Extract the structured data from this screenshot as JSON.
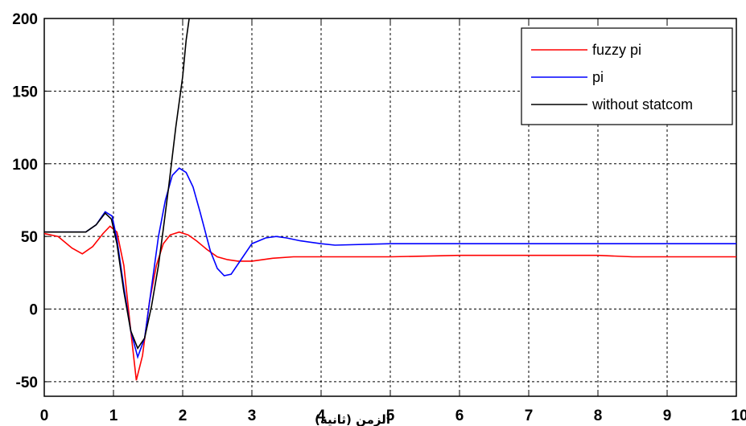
{
  "chart_data": {
    "type": "line",
    "title": "",
    "xlabel": "الزمن (ثانية)",
    "ylabel": "",
    "xlim": [
      0,
      10
    ],
    "ylim": [
      -60,
      200
    ],
    "xticks": [
      0,
      1,
      2,
      3,
      4,
      5,
      6,
      7,
      8,
      9,
      10
    ],
    "yticks": [
      -50,
      0,
      50,
      100,
      150,
      200
    ],
    "grid": true,
    "grid_style": "dotted",
    "legend_position": "top-right",
    "series": [
      {
        "name": "fuzzy pi",
        "color": "#ff0000",
        "x": [
          0,
          0.2,
          0.4,
          0.55,
          0.7,
          0.85,
          0.95,
          1.05,
          1.15,
          1.25,
          1.33,
          1.42,
          1.52,
          1.62,
          1.72,
          1.82,
          1.95,
          2.08,
          2.2,
          2.35,
          2.5,
          2.65,
          2.8,
          3.0,
          3.3,
          3.6,
          4.0,
          5.0,
          6.0,
          7.0,
          8.0,
          8.5,
          9.0,
          10.0
        ],
        "y": [
          52,
          50,
          42,
          38,
          43,
          52,
          57,
          53,
          30,
          -15,
          -49,
          -32,
          5,
          30,
          45,
          51,
          53,
          51,
          47,
          41,
          36,
          34,
          33,
          33,
          35,
          36,
          36,
          36,
          37,
          37,
          37,
          36,
          36,
          36
        ]
      },
      {
        "name": "pi",
        "color": "#0000ff",
        "x": [
          0,
          0.3,
          0.6,
          0.75,
          0.88,
          0.98,
          1.05,
          1.15,
          1.25,
          1.35,
          1.45,
          1.55,
          1.65,
          1.75,
          1.85,
          1.95,
          2.05,
          2.15,
          2.25,
          2.4,
          2.5,
          2.6,
          2.7,
          2.8,
          3.0,
          3.2,
          3.35,
          3.5,
          3.7,
          4.0,
          4.2,
          5.0,
          6.0,
          7.0,
          8.0,
          9.0,
          10.0
        ],
        "y": [
          53,
          53,
          53,
          58,
          67,
          64,
          48,
          15,
          -15,
          -33,
          -20,
          15,
          50,
          75,
          92,
          97,
          94,
          84,
          67,
          40,
          28,
          23,
          24,
          31,
          45,
          49,
          50,
          49,
          47,
          45,
          44,
          45,
          45,
          45,
          45,
          45,
          45
        ]
      },
      {
        "name": "without statcom",
        "color": "#000000",
        "x": [
          0,
          0.3,
          0.6,
          0.75,
          0.88,
          0.97,
          1.05,
          1.15,
          1.25,
          1.35,
          1.45,
          1.55,
          1.65,
          1.72,
          1.8,
          1.9,
          2.0,
          2.05,
          2.1
        ],
        "y": [
          53,
          53,
          53,
          58,
          66,
          62,
          45,
          12,
          -15,
          -27,
          -20,
          2,
          30,
          55,
          85,
          125,
          160,
          185,
          202
        ]
      }
    ]
  }
}
